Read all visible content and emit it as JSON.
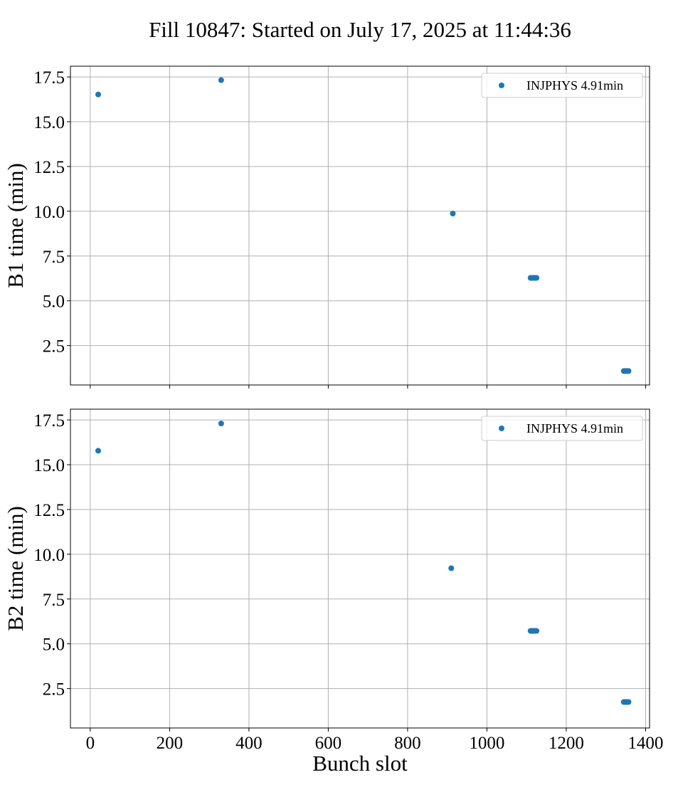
{
  "chart_data": {
    "type": "scatter",
    "title": "Fill 10847: Started on July 17, 2025 at 11:44:36",
    "xlabel": "Bunch slot",
    "xlim": [
      -50,
      1410
    ],
    "x_ticks": [
      0,
      200,
      400,
      600,
      800,
      1000,
      1200,
      1400
    ],
    "x_tick_labels": [
      "0",
      "200",
      "400",
      "600",
      "800",
      "1000",
      "1200",
      "1400"
    ],
    "y_ticks": [
      2.5,
      5.0,
      7.5,
      10.0,
      12.5,
      15.0,
      17.5
    ],
    "y_tick_labels": [
      "2.5",
      "5.0",
      "7.5",
      "10.0",
      "12.5",
      "15.0",
      "17.5"
    ],
    "grid": true,
    "legend_position": "top-right",
    "marker_color": "#1f77b4",
    "panels": [
      {
        "ylabel": "B1 time (min)",
        "ylim": [
          0.3,
          18.1
        ],
        "series": [
          {
            "name": "INJPHYS 4.91min",
            "x": [
              20,
              330,
              914,
              1110,
              1113,
              1116,
              1119,
              1122,
              1125,
              1345,
              1348,
              1351,
              1354,
              1357
            ],
            "y": [
              16.52,
              17.32,
              9.87,
              6.28,
              6.28,
              6.28,
              6.28,
              6.28,
              6.28,
              1.08,
              1.08,
              1.08,
              1.08,
              1.08
            ]
          }
        ]
      },
      {
        "ylabel": "B2 time (min)",
        "ylim": [
          0.3,
          18.1
        ],
        "series": [
          {
            "name": "INJPHYS 4.91min",
            "x": [
              20,
              330,
              910,
              1110,
              1113,
              1116,
              1119,
              1122,
              1125,
              1345,
              1348,
              1351,
              1354,
              1357
            ],
            "y": [
              15.78,
              17.3,
              9.22,
              5.72,
              5.72,
              5.72,
              5.72,
              5.72,
              5.72,
              1.75,
              1.75,
              1.75,
              1.75,
              1.75
            ]
          }
        ]
      }
    ]
  }
}
